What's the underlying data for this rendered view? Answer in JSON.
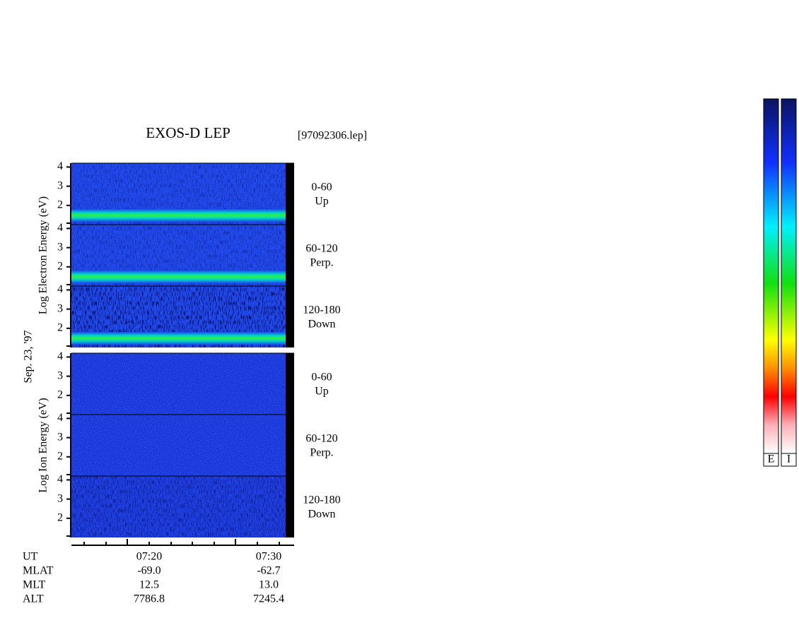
{
  "chart_data": {
    "type": "spectrogram",
    "title": "EXOS-D LEP",
    "file": "[97092306.lep]",
    "date": "Sep. 23, '97",
    "ylim": [
      1,
      4.2
    ],
    "yticks": [
      2,
      3,
      4
    ],
    "groups": [
      {
        "label": "Log  Electron  Energy (eV)",
        "panels": [
          {
            "angle": "0-60",
            "direction": "Up"
          },
          {
            "angle": "60-120",
            "direction": "Perp."
          },
          {
            "angle": "120-180",
            "direction": "Down"
          }
        ]
      },
      {
        "label": "Log  Ion  Energy (eV)",
        "panels": [
          {
            "angle": "0-60",
            "direction": "Up"
          },
          {
            "angle": "60-120",
            "direction": "Perp."
          },
          {
            "angle": "120-180",
            "direction": "Down"
          }
        ]
      }
    ],
    "ephemeris": {
      "labels": [
        "UT",
        "MLAT",
        "MLT",
        "ALT"
      ],
      "columns": [
        [
          "07:20",
          "-69.0",
          "12.5",
          "7786.8"
        ],
        [
          "07:30",
          "-62.7",
          "13.0",
          "7245.4"
        ]
      ]
    },
    "colorbar_labels": [
      "E",
      "I"
    ]
  }
}
